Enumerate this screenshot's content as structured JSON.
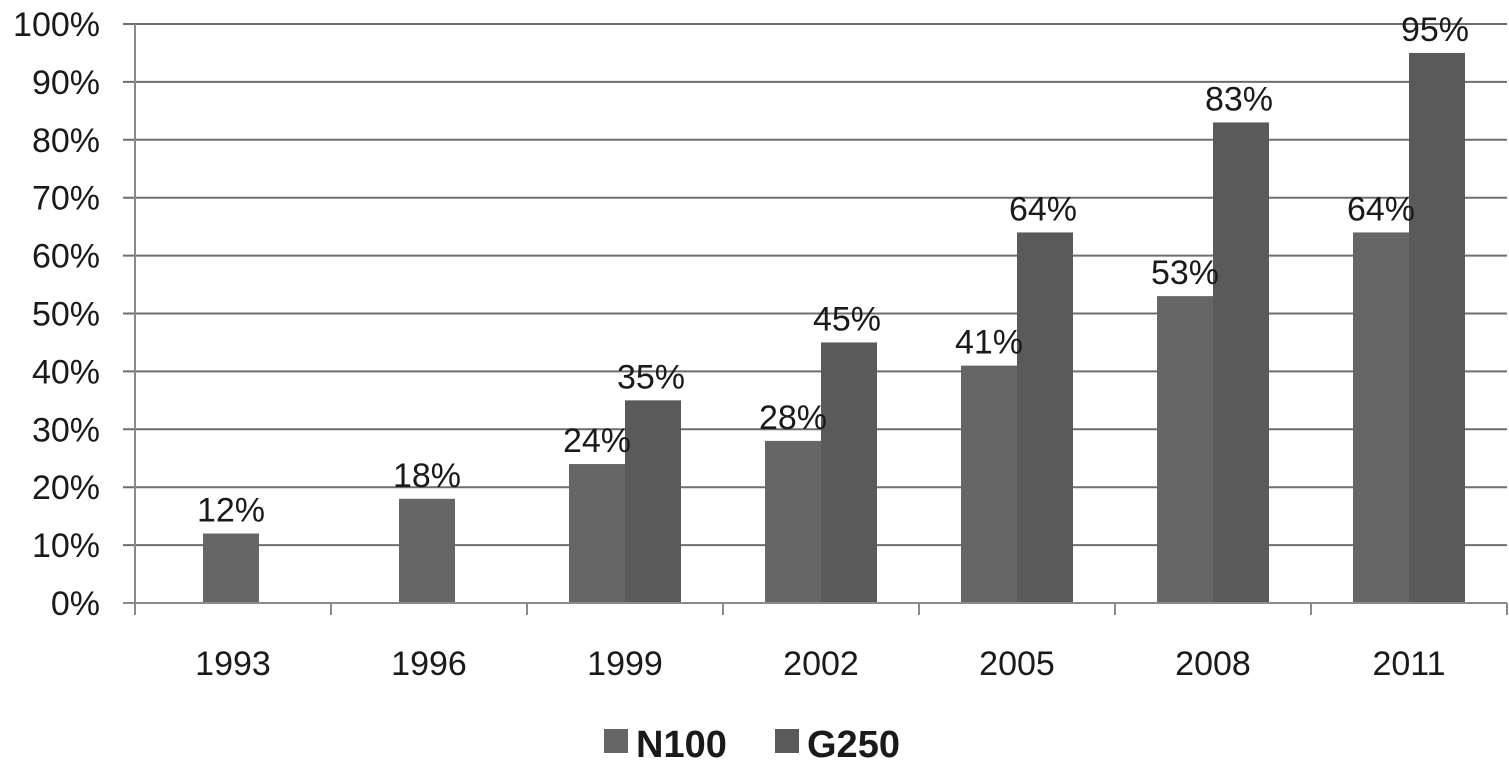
{
  "chart_data": {
    "type": "bar",
    "title": "",
    "xlabel": "",
    "ylabel": "",
    "categories": [
      "1993",
      "1996",
      "1999",
      "2002",
      "2005",
      "2008",
      "2011"
    ],
    "series": [
      {
        "name": "N100",
        "values": [
          12,
          18,
          24,
          28,
          41,
          53,
          64
        ],
        "labels": [
          "12%",
          "18%",
          "24%",
          "28%",
          "41%",
          "53%",
          "64%"
        ],
        "color": "#666666"
      },
      {
        "name": "G250",
        "values": [
          null,
          null,
          35,
          45,
          64,
          83,
          95
        ],
        "labels": [
          "",
          "",
          "35%",
          "45%",
          "64%",
          "83%",
          "95%"
        ],
        "color": "#5a5a5a"
      }
    ],
    "ylim": [
      0,
      100
    ],
    "yticks": [
      0,
      10,
      20,
      30,
      40,
      50,
      60,
      70,
      80,
      90,
      100
    ],
    "ytick_labels": [
      "0%",
      "10%",
      "20%",
      "30%",
      "40%",
      "50%",
      "60%",
      "70%",
      "80%",
      "90%",
      "100%"
    ],
    "grid": true,
    "legend_position": "bottom",
    "gridline_color": "#6e6e6e",
    "axis_color": "#8a8a8a",
    "text_color": "#1a1a1a"
  }
}
